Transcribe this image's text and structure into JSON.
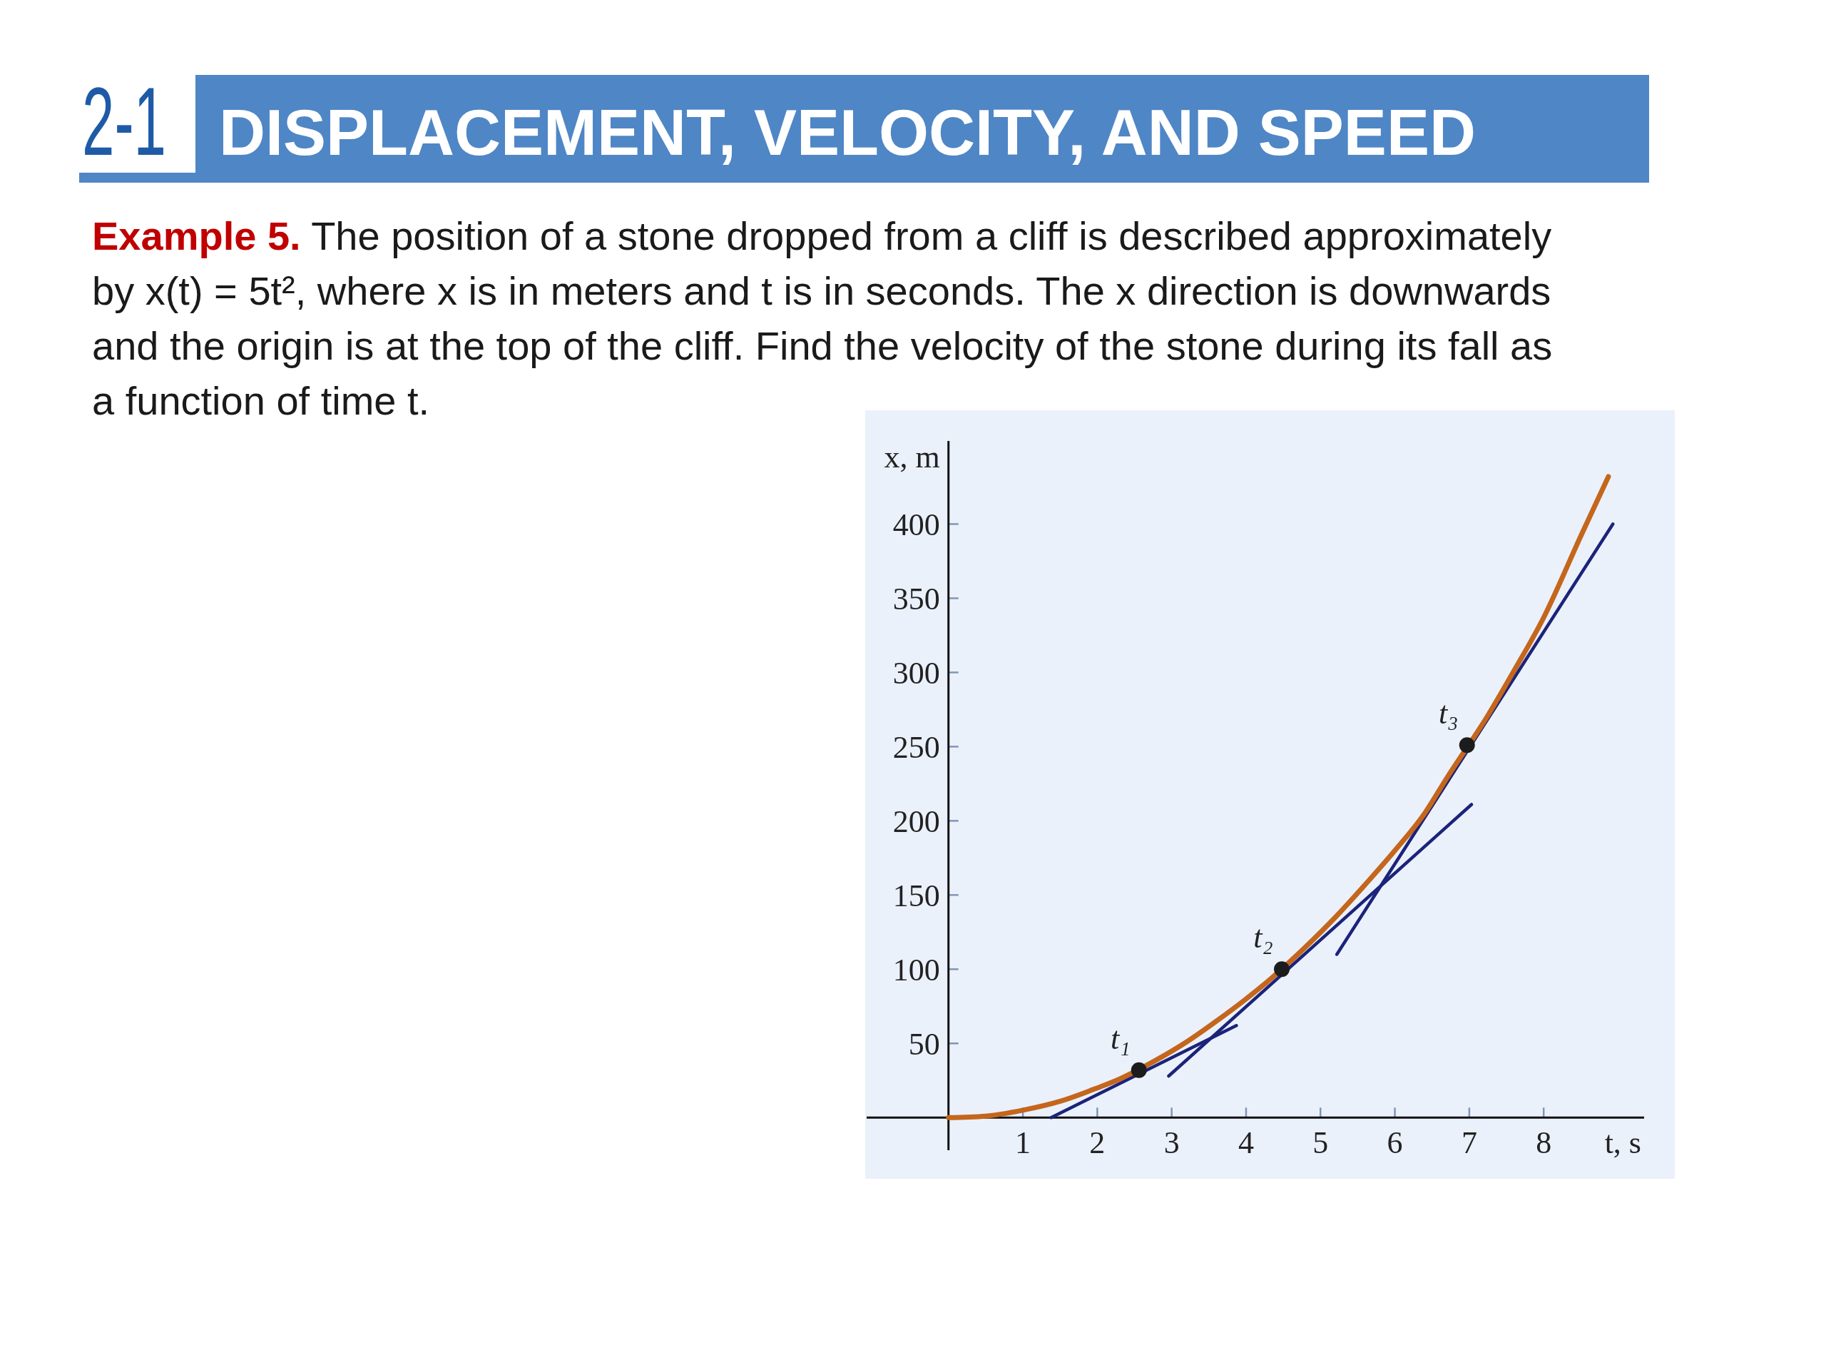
{
  "chart_data": {
    "type": "line",
    "title": "DISPLACEMENT, VELOCITY, AND SPEED",
    "subtitle": "Example 5. The position of a stone dropped from a cliff is described approximately by x(t) = 5t², where x is in meters and t is in seconds. The x direction is downwards and the origin is at the top of the cliff. Find the velocity of the stone during its fall as a function of time t.",
    "xlabel": "t, s",
    "ylabel": "x, m",
    "xlim": [
      -1.1,
      9.35
    ],
    "ylim": [
      -22,
      456
    ],
    "xticks": [
      1,
      2,
      3,
      4,
      5,
      6,
      7,
      8
    ],
    "yticks": [
      50,
      100,
      150,
      200,
      250,
      300,
      350,
      400
    ],
    "series": [
      {
        "color": "#1b237a",
        "x": [
          1.38,
          3.87
        ],
        "values": [
          0,
          62
        ]
      },
      {
        "color": "#1b237a",
        "x": [
          2.96,
          7.03
        ],
        "values": [
          28,
          211
        ]
      },
      {
        "color": "#1b237a",
        "x": [
          5.22,
          8.93
        ],
        "values": [
          110,
          400
        ]
      },
      {
        "color": "#c4661c",
        "x": [
          0,
          0.5,
          1,
          1.5,
          2,
          2.3,
          2.8,
          3.2,
          3.6,
          4,
          4.2,
          4.8,
          5.2,
          5.6,
          6,
          6.4,
          6.7,
          7.25,
          7.6,
          8,
          8.5,
          8.87
        ],
        "values": [
          0,
          1,
          5,
          11,
          20,
          26,
          39,
          51,
          65,
          80,
          88,
          115,
          135,
          157,
          180,
          205,
          229,
          271,
          301,
          337,
          392,
          432
        ]
      },
      {
        "type": "scatter",
        "color": "#1c1c1c",
        "marker": "circle",
        "x": [
          2.56,
          4.48,
          6.97
        ],
        "values": [
          32,
          100,
          251
        ]
      }
    ],
    "annotations": [
      "2-1",
      {
        "text": "t₁",
        "x": 2.56,
        "y": 32
      },
      {
        "text": "t₂",
        "x": 4.48,
        "y": 100
      },
      {
        "text": "t₃",
        "x": 6.97,
        "y": 251
      }
    ]
  }
}
